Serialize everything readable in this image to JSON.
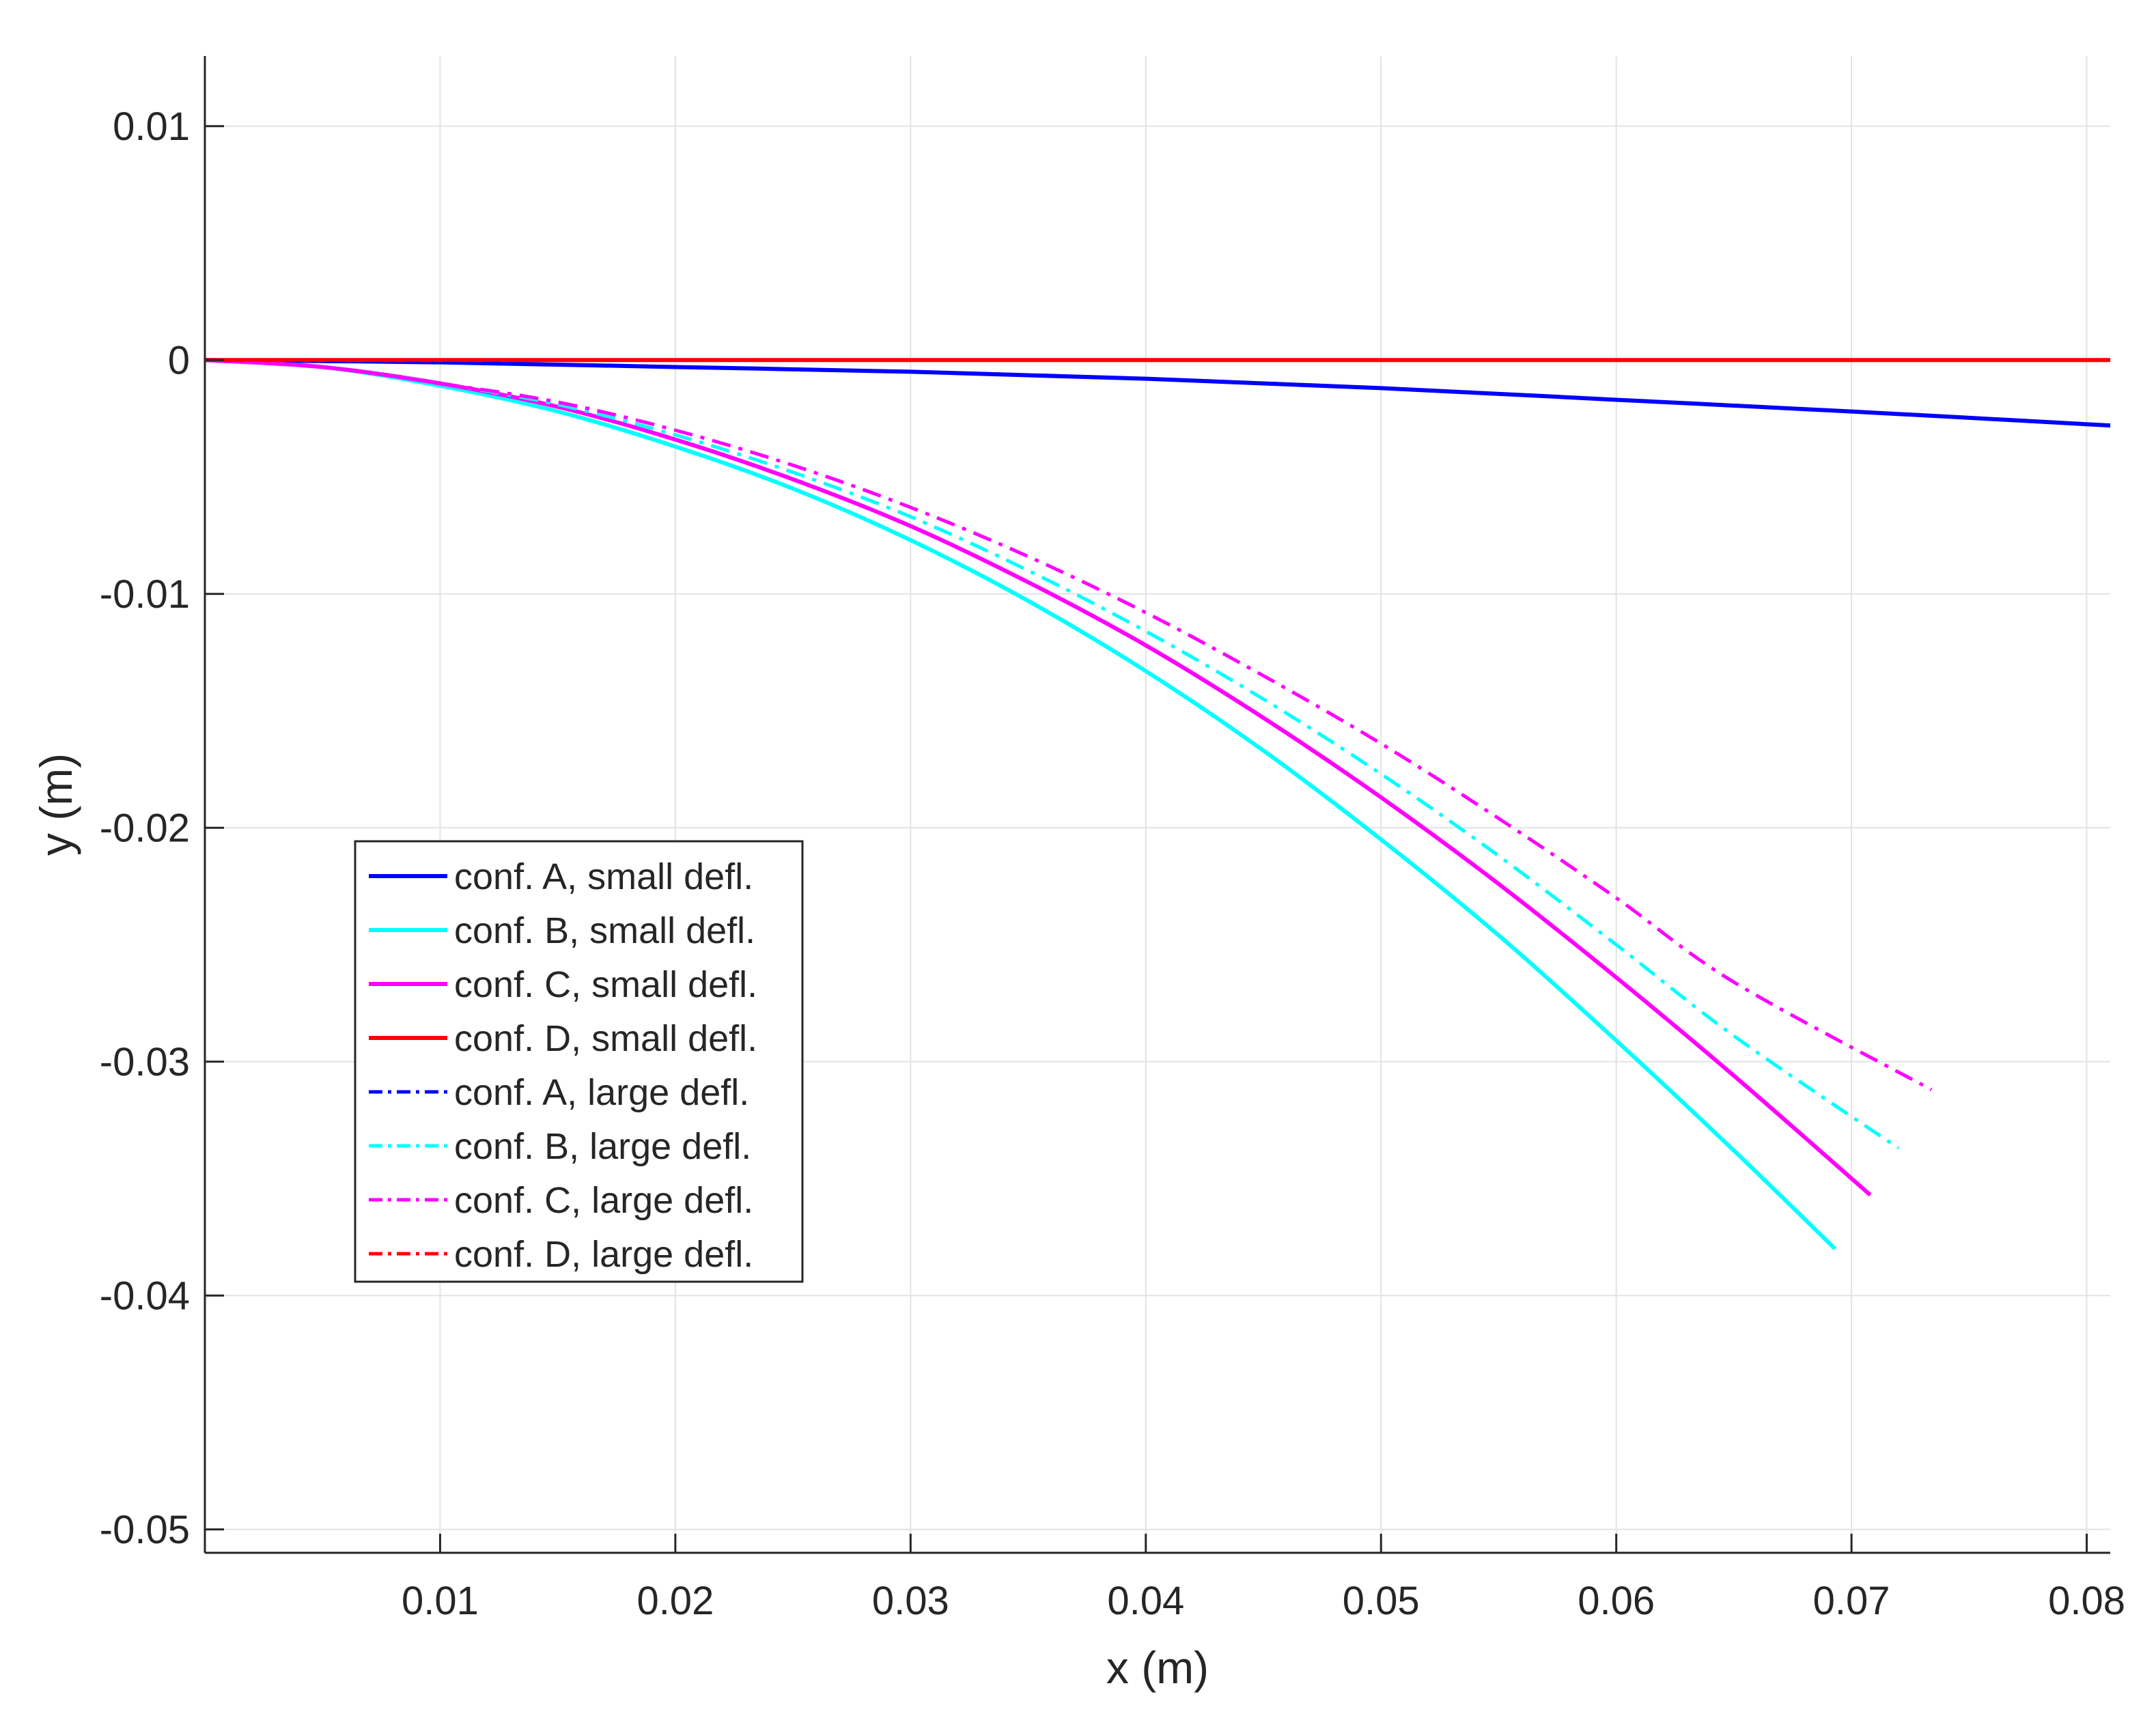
{
  "chart_data": {
    "type": "line",
    "title": "",
    "xlabel": "x (m)",
    "ylabel": "y (m)",
    "xlim": [
      0,
      0.081
    ],
    "ylim": [
      -0.051,
      0.013
    ],
    "xticks": [
      0.01,
      0.02,
      0.03,
      0.04,
      0.05,
      0.06,
      0.07,
      0.08
    ],
    "xtick_labels": [
      "0.01",
      "0.02",
      "0.03",
      "0.04",
      "0.05",
      "0.06",
      "0.07",
      "0.08"
    ],
    "yticks": [
      0.01,
      0,
      -0.01,
      -0.02,
      -0.03,
      -0.04,
      -0.05
    ],
    "ytick_labels": [
      "0.01",
      "0",
      "-0.01",
      "-0.02",
      "-0.03",
      "-0.04",
      "-0.05"
    ],
    "grid": true,
    "legend_position": "lower-left inside plot",
    "series": [
      {
        "name": "conf. A, small defl.",
        "color": "#0000ff",
        "style": "solid",
        "x": [
          0,
          0.01,
          0.02,
          0.03,
          0.04,
          0.05,
          0.06,
          0.07,
          0.081
        ],
        "y": [
          0,
          -0.0001,
          -0.0003,
          -0.0005,
          -0.0008,
          -0.0012,
          -0.0017,
          -0.0022,
          -0.0028
        ]
      },
      {
        "name": "conf. B, small defl.",
        "color": "#00ffff",
        "style": "solid",
        "x": [
          0,
          0.005,
          0.01,
          0.015,
          0.02,
          0.025,
          0.03,
          0.035,
          0.04,
          0.045,
          0.05,
          0.055,
          0.06,
          0.065,
          0.0693
        ],
        "y": [
          0,
          -0.0003,
          -0.0011,
          -0.0022,
          -0.0037,
          -0.0055,
          -0.0077,
          -0.0103,
          -0.0133,
          -0.0167,
          -0.0205,
          -0.0246,
          -0.0291,
          -0.0338,
          -0.038
        ]
      },
      {
        "name": "conf. C, small defl.",
        "color": "#ff00ff",
        "style": "solid",
        "x": [
          0,
          0.005,
          0.01,
          0.015,
          0.02,
          0.025,
          0.03,
          0.035,
          0.04,
          0.045,
          0.05,
          0.055,
          0.06,
          0.065,
          0.0708
        ],
        "y": [
          0,
          -0.0003,
          -0.001,
          -0.002,
          -0.0034,
          -0.0051,
          -0.0071,
          -0.0095,
          -0.0122,
          -0.0153,
          -0.0187,
          -0.0224,
          -0.0264,
          -0.0306,
          -0.0357
        ]
      },
      {
        "name": "conf. D, small defl.",
        "color": "#ff0000",
        "style": "solid",
        "x": [
          0,
          0.081
        ],
        "y": [
          0,
          0
        ]
      },
      {
        "name": "conf. A, large defl.",
        "color": "#0000ff",
        "style": "dashdot",
        "x": [
          0,
          0.01,
          0.02,
          0.03,
          0.04,
          0.05,
          0.06,
          0.07,
          0.081
        ],
        "y": [
          0,
          -0.0001,
          -0.0003,
          -0.0005,
          -0.0008,
          -0.0012,
          -0.0017,
          -0.0022,
          -0.0028
        ]
      },
      {
        "name": "conf. B, large defl.",
        "color": "#00ffff",
        "style": "dashdot",
        "x": [
          0,
          0.005,
          0.01,
          0.015,
          0.02,
          0.025,
          0.03,
          0.035,
          0.04,
          0.045,
          0.05,
          0.055,
          0.06,
          0.065,
          0.072
        ],
        "y": [
          0,
          -0.0003,
          -0.001,
          -0.0019,
          -0.0032,
          -0.0048,
          -0.0067,
          -0.009,
          -0.0116,
          -0.0145,
          -0.0177,
          -0.0212,
          -0.025,
          -0.0289,
          -0.0337
        ]
      },
      {
        "name": "conf. C, large defl.",
        "color": "#ff00ff",
        "style": "dashdot",
        "x": [
          0,
          0.005,
          0.01,
          0.015,
          0.02,
          0.025,
          0.03,
          0.035,
          0.04,
          0.045,
          0.05,
          0.055,
          0.06,
          0.065,
          0.0734
        ],
        "y": [
          0,
          -0.0003,
          -0.001,
          -0.0018,
          -0.003,
          -0.0045,
          -0.0063,
          -0.0084,
          -0.0108,
          -0.0135,
          -0.0164,
          -0.0196,
          -0.023,
          -0.0266,
          -0.0312
        ]
      },
      {
        "name": "conf. D, large defl.",
        "color": "#ff0000",
        "style": "dashdot",
        "x": [
          0,
          0.081
        ],
        "y": [
          0,
          0
        ]
      }
    ]
  }
}
